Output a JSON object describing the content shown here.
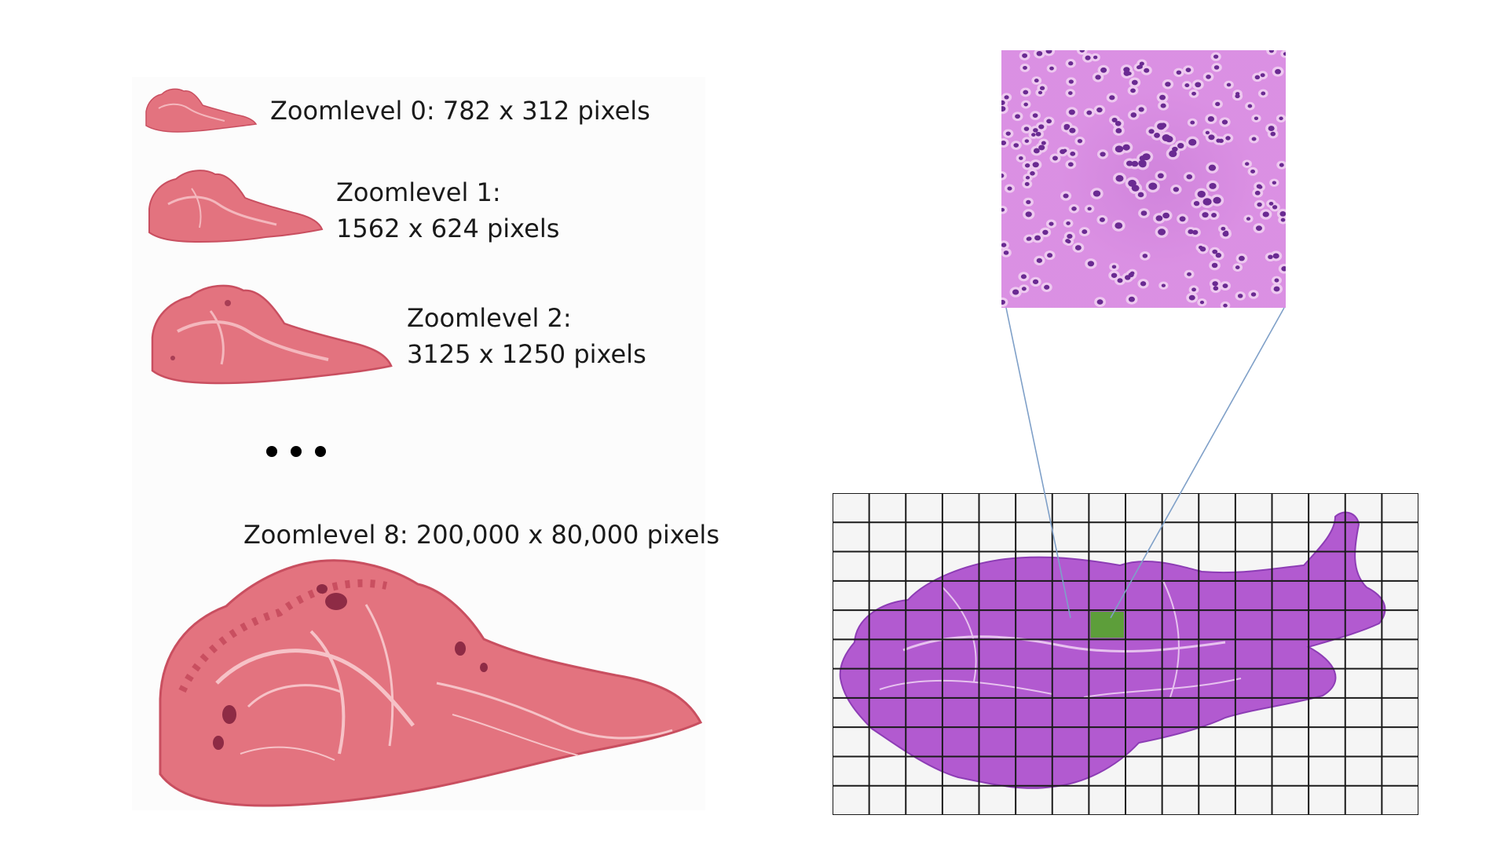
{
  "zoom_levels": [
    {
      "label": "Zoomlevel 0: 782 x 312 pixels"
    },
    {
      "label_line1": "Zoomlevel 1:",
      "label_line2": "1562 x 624 pixels"
    },
    {
      "label_line1": "Zoomlevel 2:",
      "label_line2": "3125 x 1250 pixels"
    },
    {
      "label": "Zoomlevel 8: 200,000 x 80,000 pixels"
    }
  ],
  "colors": {
    "he_pink": "#e3737f",
    "he_pink_dark": "#c94f60",
    "he_purple": "#b25ad0",
    "he_purple_dark": "#7e2fa8",
    "highlight_tile": "#5d9e3a",
    "grid_line": "#1a1a1a",
    "connector_line": "#7fa0c8"
  },
  "grid": {
    "columns": 16,
    "rows": 11,
    "highlight_col": 7,
    "highlight_row": 4
  }
}
